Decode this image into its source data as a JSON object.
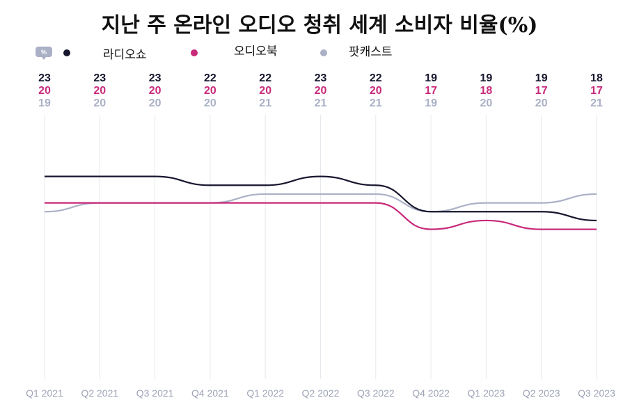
{
  "chart_data": {
    "type": "line",
    "title": "지난 주 온라인 오디오 청취 세계 소비자 비율(%)",
    "unit_badge": "%",
    "categories": [
      "Q1 2021",
      "Q2 2021",
      "Q3 2021",
      "Q4 2021",
      "Q1 2022",
      "Q2 2022",
      "Q3 2022",
      "Q4 2022",
      "Q1 2023",
      "Q2 2023",
      "Q3 2023"
    ],
    "series": [
      {
        "name": "라디오쇼",
        "color": "#16162e",
        "values": [
          23,
          23,
          23,
          22,
          22,
          23,
          22,
          19,
          19,
          19,
          18
        ]
      },
      {
        "name": "오디오북",
        "color": "#c8297a",
        "values": [
          20,
          20,
          20,
          20,
          20,
          20,
          20,
          17,
          18,
          17,
          17
        ]
      },
      {
        "name": "팟캐스트",
        "color": "#aab1c6",
        "values": [
          19,
          20,
          20,
          20,
          21,
          21,
          21,
          19,
          20,
          20,
          21
        ]
      }
    ],
    "ylim": [
      0,
      33
    ],
    "grid": "vertical",
    "legend": "top-left"
  }
}
